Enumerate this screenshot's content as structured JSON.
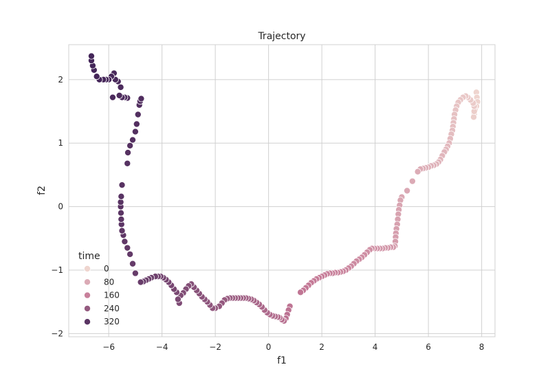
{
  "chart_data": {
    "type": "scatter",
    "title": "Trajectory",
    "xlabel": "f1",
    "ylabel": "f2",
    "xlim": [
      -7.5,
      8.5
    ],
    "ylim": [
      -2.05,
      2.55
    ],
    "xticks": [
      -6,
      -4,
      -2,
      0,
      2,
      4,
      6,
      8
    ],
    "yticks": [
      -2,
      -1,
      0,
      1,
      2
    ],
    "grid": true,
    "legend": {
      "title": "time",
      "position": "lower-left",
      "entries": [
        {
          "label": "0",
          "value": 0
        },
        {
          "label": "80",
          "value": 80
        },
        {
          "label": "160",
          "value": 160
        },
        {
          "label": "240",
          "value": 240
        },
        {
          "label": "320",
          "value": 320
        }
      ]
    },
    "hue_range": [
      0,
      350
    ],
    "colors": {
      "low": "#efd5cf",
      "high": "#442659",
      "grid": "#d0d0d0",
      "text": "#262626"
    },
    "series": [
      {
        "name": "time",
        "points": [
          [
            7.8,
            1.8,
            0
          ],
          [
            7.82,
            1.72,
            2
          ],
          [
            7.84,
            1.65,
            4
          ],
          [
            7.8,
            1.58,
            6
          ],
          [
            7.75,
            1.52,
            8
          ],
          [
            7.72,
            1.46,
            10
          ],
          [
            7.7,
            1.41,
            12
          ],
          [
            7.72,
            1.5,
            14
          ],
          [
            7.72,
            1.58,
            16
          ],
          [
            7.68,
            1.63,
            18
          ],
          [
            7.58,
            1.68,
            20
          ],
          [
            7.48,
            1.72,
            22
          ],
          [
            7.4,
            1.74,
            24
          ],
          [
            7.3,
            1.72,
            26
          ],
          [
            7.2,
            1.68,
            28
          ],
          [
            7.12,
            1.64,
            30
          ],
          [
            7.06,
            1.58,
            32
          ],
          [
            7.02,
            1.52,
            34
          ],
          [
            6.98,
            1.45,
            36
          ],
          [
            6.96,
            1.38,
            38
          ],
          [
            6.94,
            1.32,
            40
          ],
          [
            6.92,
            1.26,
            42
          ],
          [
            6.9,
            1.2,
            44
          ],
          [
            6.86,
            1.14,
            46
          ],
          [
            6.82,
            1.07,
            48
          ],
          [
            6.78,
            1.0,
            50
          ],
          [
            6.72,
            0.95,
            52
          ],
          [
            6.66,
            0.9,
            54
          ],
          [
            6.6,
            0.86,
            56
          ],
          [
            6.52,
            0.8,
            58
          ],
          [
            6.45,
            0.74,
            60
          ],
          [
            6.38,
            0.7,
            62
          ],
          [
            6.3,
            0.67,
            64
          ],
          [
            6.2,
            0.65,
            66
          ],
          [
            6.1,
            0.64,
            68
          ],
          [
            6.0,
            0.62,
            70
          ],
          [
            5.9,
            0.61,
            72
          ],
          [
            5.8,
            0.6,
            74
          ],
          [
            5.7,
            0.59,
            76
          ],
          [
            5.6,
            0.55,
            78
          ],
          [
            5.4,
            0.4,
            81
          ],
          [
            5.2,
            0.25,
            84
          ],
          [
            5.0,
            0.15,
            86
          ],
          [
            4.95,
            0.1,
            88
          ],
          [
            4.92,
            0.02,
            90
          ],
          [
            4.89,
            -0.05,
            92
          ],
          [
            4.87,
            -0.12,
            94
          ],
          [
            4.85,
            -0.2,
            96
          ],
          [
            4.83,
            -0.28,
            98
          ],
          [
            4.8,
            -0.35,
            100
          ],
          [
            4.78,
            -0.42,
            102
          ],
          [
            4.77,
            -0.48,
            104
          ],
          [
            4.76,
            -0.55,
            106
          ],
          [
            4.74,
            -0.62,
            108
          ],
          [
            4.68,
            -0.64,
            110
          ],
          [
            4.58,
            -0.64,
            112
          ],
          [
            4.48,
            -0.65,
            114
          ],
          [
            4.38,
            -0.65,
            116
          ],
          [
            4.28,
            -0.66,
            118
          ],
          [
            4.18,
            -0.66,
            120
          ],
          [
            4.08,
            -0.66,
            122
          ],
          [
            3.98,
            -0.66,
            124
          ],
          [
            3.88,
            -0.66,
            126
          ],
          [
            3.8,
            -0.68,
            128
          ],
          [
            3.7,
            -0.72,
            130
          ],
          [
            3.6,
            -0.76,
            132
          ],
          [
            3.5,
            -0.8,
            134
          ],
          [
            3.4,
            -0.83,
            136
          ],
          [
            3.3,
            -0.86,
            138
          ],
          [
            3.2,
            -0.9,
            140
          ],
          [
            3.1,
            -0.94,
            142
          ],
          [
            3.0,
            -0.97,
            144
          ],
          [
            2.9,
            -1.0,
            146
          ],
          [
            2.8,
            -1.02,
            148
          ],
          [
            2.7,
            -1.03,
            150
          ],
          [
            2.6,
            -1.04,
            152
          ],
          [
            2.5,
            -1.04,
            154
          ],
          [
            2.4,
            -1.05,
            156
          ],
          [
            2.3,
            -1.05,
            158
          ],
          [
            2.2,
            -1.06,
            160
          ],
          [
            2.1,
            -1.08,
            162
          ],
          [
            2.0,
            -1.1,
            164
          ],
          [
            1.9,
            -1.12,
            166
          ],
          [
            1.8,
            -1.14,
            168
          ],
          [
            1.7,
            -1.17,
            170
          ],
          [
            1.6,
            -1.2,
            172
          ],
          [
            1.5,
            -1.24,
            174
          ],
          [
            1.4,
            -1.28,
            176
          ],
          [
            1.3,
            -1.32,
            178
          ],
          [
            1.2,
            -1.35,
            180
          ],
          [
            0.8,
            -1.57,
            183
          ],
          [
            0.75,
            -1.63,
            185
          ],
          [
            0.7,
            -1.7,
            187
          ],
          [
            0.65,
            -1.76,
            189
          ],
          [
            0.58,
            -1.8,
            191
          ],
          [
            0.5,
            -1.78,
            193
          ],
          [
            0.42,
            -1.75,
            195
          ],
          [
            0.35,
            -1.74,
            197
          ],
          [
            0.25,
            -1.73,
            199
          ],
          [
            0.15,
            -1.72,
            201
          ],
          [
            0.05,
            -1.7,
            203
          ],
          [
            -0.05,
            -1.67,
            205
          ],
          [
            -0.15,
            -1.63,
            207
          ],
          [
            -0.25,
            -1.58,
            209
          ],
          [
            -0.35,
            -1.54,
            211
          ],
          [
            -0.45,
            -1.51,
            213
          ],
          [
            -0.55,
            -1.48,
            215
          ],
          [
            -0.65,
            -1.46,
            217
          ],
          [
            -0.75,
            -1.45,
            219
          ],
          [
            -0.85,
            -1.44,
            221
          ],
          [
            -0.95,
            -1.44,
            223
          ],
          [
            -1.05,
            -1.44,
            225
          ],
          [
            -1.15,
            -1.44,
            227
          ],
          [
            -1.25,
            -1.44,
            229
          ],
          [
            -1.35,
            -1.44,
            231
          ],
          [
            -1.45,
            -1.44,
            233
          ],
          [
            -1.55,
            -1.45,
            235
          ],
          [
            -1.65,
            -1.47,
            237
          ],
          [
            -1.75,
            -1.52,
            239
          ],
          [
            -1.85,
            -1.57,
            241
          ],
          [
            -2.0,
            -1.6,
            243
          ],
          [
            -2.1,
            -1.6,
            245
          ],
          [
            -2.2,
            -1.55,
            247
          ],
          [
            -2.3,
            -1.5,
            249
          ],
          [
            -2.4,
            -1.46,
            251
          ],
          [
            -2.5,
            -1.42,
            253
          ],
          [
            -2.6,
            -1.37,
            255
          ],
          [
            -2.7,
            -1.32,
            257
          ],
          [
            -2.8,
            -1.27,
            259
          ],
          [
            -2.9,
            -1.22,
            261
          ],
          [
            -3.0,
            -1.25,
            263
          ],
          [
            -3.1,
            -1.3,
            265
          ],
          [
            -3.2,
            -1.36,
            267
          ],
          [
            -3.3,
            -1.4,
            269
          ],
          [
            -3.35,
            -1.52,
            271
          ],
          [
            -3.4,
            -1.46,
            273
          ],
          [
            -3.45,
            -1.35,
            275
          ],
          [
            -3.55,
            -1.3,
            277
          ],
          [
            -3.65,
            -1.24,
            279
          ],
          [
            -3.75,
            -1.19,
            281
          ],
          [
            -3.85,
            -1.15,
            283
          ],
          [
            -3.95,
            -1.12,
            285
          ],
          [
            -4.05,
            -1.1,
            287
          ],
          [
            -4.15,
            -1.1,
            289
          ],
          [
            -4.25,
            -1.1,
            291
          ],
          [
            -4.4,
            -1.12,
            293
          ],
          [
            -4.5,
            -1.14,
            295
          ],
          [
            -4.6,
            -1.16,
            297
          ],
          [
            -4.7,
            -1.18,
            299
          ],
          [
            -4.8,
            -1.19,
            301
          ],
          [
            -5.0,
            -1.05,
            303
          ],
          [
            -5.1,
            -0.9,
            305
          ],
          [
            -5.2,
            -0.75,
            307
          ],
          [
            -5.3,
            -0.65,
            309
          ],
          [
            -5.4,
            -0.55,
            311
          ],
          [
            -5.45,
            -0.45,
            313
          ],
          [
            -5.5,
            -0.38,
            315
          ],
          [
            -5.52,
            -0.28,
            317
          ],
          [
            -5.53,
            -0.2,
            318
          ],
          [
            -5.54,
            -0.1,
            319
          ],
          [
            -5.55,
            0.0,
            320
          ],
          [
            -5.55,
            0.07,
            321
          ],
          [
            -5.53,
            0.16,
            322
          ],
          [
            -5.5,
            0.34,
            323
          ],
          [
            -5.3,
            0.68,
            325
          ],
          [
            -5.28,
            0.85,
            326
          ],
          [
            -5.2,
            0.96,
            327
          ],
          [
            -5.1,
            1.05,
            328
          ],
          [
            -5.0,
            1.18,
            329
          ],
          [
            -4.95,
            1.3,
            330
          ],
          [
            -4.9,
            1.45,
            331
          ],
          [
            -4.85,
            1.6,
            332
          ],
          [
            -4.82,
            1.66,
            333
          ],
          [
            -4.78,
            1.7,
            334
          ],
          [
            -5.3,
            1.71,
            335
          ],
          [
            -5.4,
            1.72,
            336
          ],
          [
            -5.5,
            1.72,
            337
          ],
          [
            -5.6,
            1.75,
            338
          ],
          [
            -5.55,
            1.88,
            339
          ],
          [
            -5.65,
            1.97,
            340
          ],
          [
            -5.85,
            1.72,
            341
          ],
          [
            -5.75,
            2.0,
            342
          ],
          [
            -5.8,
            2.1,
            343
          ],
          [
            -5.9,
            2.05,
            344
          ],
          [
            -6.0,
            2.0,
            345
          ],
          [
            -6.1,
            2.0,
            346
          ],
          [
            -6.2,
            2.0,
            347
          ],
          [
            -6.35,
            2.0,
            348
          ],
          [
            -6.45,
            2.05,
            349
          ],
          [
            -6.55,
            2.15,
            350
          ],
          [
            -6.6,
            2.22,
            350
          ],
          [
            -6.65,
            2.3,
            350
          ],
          [
            -6.65,
            2.37,
            350
          ]
        ]
      }
    ]
  }
}
